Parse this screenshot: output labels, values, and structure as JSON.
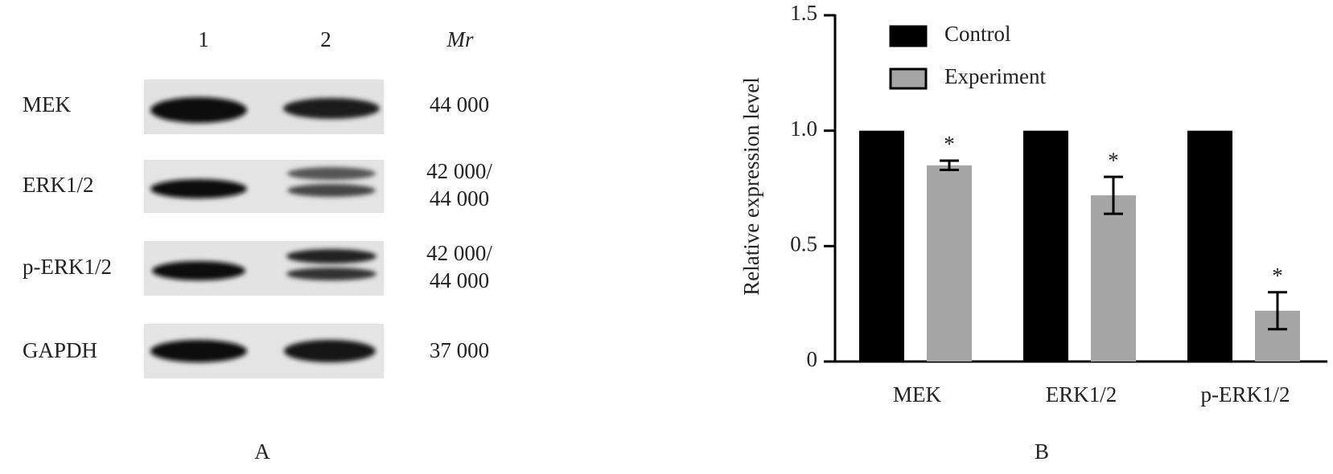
{
  "blot": {
    "lanes": [
      "1",
      "2"
    ],
    "mr_header": "Mr",
    "rows": [
      {
        "label": "MEK",
        "mr": [
          "44 000"
        ]
      },
      {
        "label": "ERK1/2",
        "mr": [
          "42 000/",
          "44 000"
        ]
      },
      {
        "label": "p-ERK1/2",
        "mr": [
          "42 000/",
          "44 000"
        ]
      },
      {
        "label": "GAPDH",
        "mr": [
          "37 000"
        ]
      }
    ]
  },
  "panel_labels": [
    "A",
    "B"
  ],
  "chart_data": {
    "type": "bar",
    "y_label": "Relative expression level",
    "categories": [
      "MEK",
      "ERK1/2",
      "p-ERK1/2"
    ],
    "series": [
      {
        "name": "Control",
        "color": "#000000",
        "values": [
          1,
          1,
          1
        ]
      },
      {
        "name": "Experiment",
        "color": "#a6a6a6",
        "values": [
          0.85,
          0.72,
          0.22
        ],
        "errors": [
          0.02,
          0.08,
          0.08
        ],
        "significance": [
          "*",
          "*",
          "*"
        ]
      }
    ],
    "ylim": [
      0,
      1.5
    ],
    "yticks": [
      0,
      0.5,
      {
        "value": 1,
        "label": "1.0"
      },
      1.5
    ],
    "legend": "top-left"
  }
}
